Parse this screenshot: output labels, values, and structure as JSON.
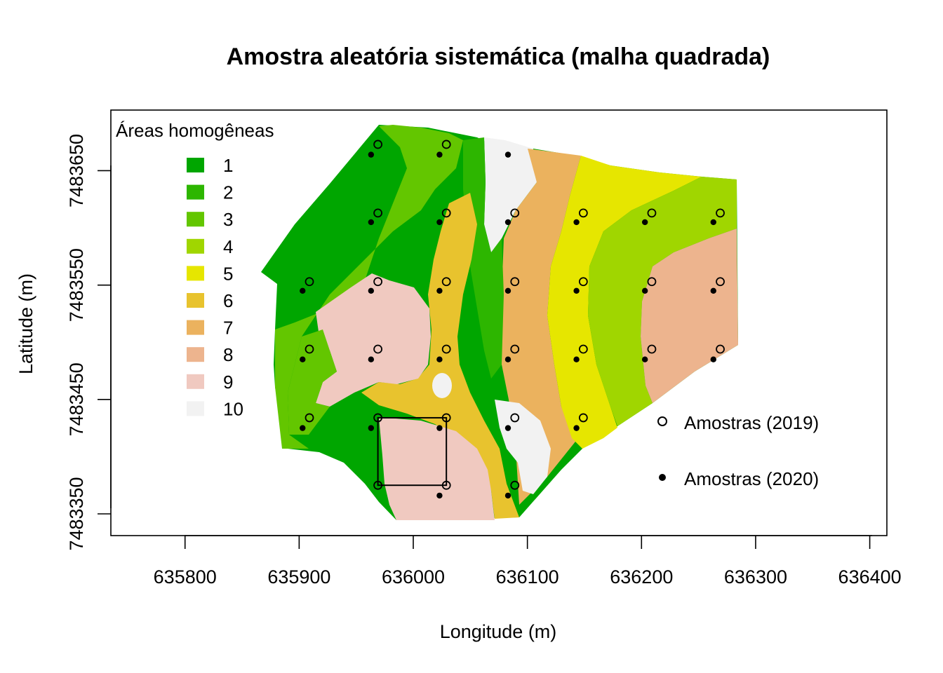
{
  "title": "Amostra aleatória sistemática (malha quadrada)",
  "x_axis": {
    "label": "Longitude (m)",
    "ticks": [
      "635800",
      "635900",
      "636000",
      "636100",
      "636200",
      "636300",
      "636400"
    ]
  },
  "y_axis": {
    "label": "Latitude (m)",
    "ticks": [
      "7483350",
      "7483450",
      "7483550",
      "7483650"
    ]
  },
  "zones_legend": {
    "title": "Áreas homogêneas",
    "items": [
      {
        "label": "1",
        "color": "#00A600"
      },
      {
        "label": "2",
        "color": "#2DB600"
      },
      {
        "label": "3",
        "color": "#63C600"
      },
      {
        "label": "4",
        "color": "#A0D600"
      },
      {
        "label": "5",
        "color": "#E6E600"
      },
      {
        "label": "6",
        "color": "#E8C32E"
      },
      {
        "label": "7",
        "color": "#EBB25E"
      },
      {
        "label": "8",
        "color": "#EDB48E"
      },
      {
        "label": "9",
        "color": "#F0C9C0"
      },
      {
        "label": "10",
        "color": "#F2F2F2"
      }
    ]
  },
  "samples_legend": {
    "open_label": "Amostras (2019)",
    "filled_label": "Amostras (2020)"
  },
  "chart_data": {
    "type": "scatter",
    "title": "Amostra aleatória sistemática (malha quadrada)",
    "xlabel": "Longitude (m)",
    "ylabel": "Latitude (m)",
    "xlim": [
      635735,
      636415
    ],
    "ylim": [
      7483331,
      7483703
    ],
    "series": [
      {
        "name": "Amostras (2019)",
        "marker": "open-circle",
        "points": [
          [
            635969,
            7483673
          ],
          [
            636029,
            7483673
          ],
          [
            635969,
            7483613
          ],
          [
            636029,
            7483613
          ],
          [
            636089,
            7483613
          ],
          [
            636149,
            7483613
          ],
          [
            636209,
            7483613
          ],
          [
            636269,
            7483613
          ],
          [
            635909,
            7483553
          ],
          [
            635969,
            7483553
          ],
          [
            636029,
            7483553
          ],
          [
            636089,
            7483553
          ],
          [
            636149,
            7483553
          ],
          [
            636209,
            7483553
          ],
          [
            636269,
            7483553
          ],
          [
            635909,
            7483494
          ],
          [
            635969,
            7483494
          ],
          [
            636029,
            7483494
          ],
          [
            636089,
            7483494
          ],
          [
            636149,
            7483494
          ],
          [
            636209,
            7483494
          ],
          [
            636269,
            7483494
          ],
          [
            635909,
            7483434
          ],
          [
            635969,
            7483434
          ],
          [
            636029,
            7483434
          ],
          [
            636089,
            7483434
          ],
          [
            636149,
            7483434
          ],
          [
            635969,
            7483375
          ],
          [
            636029,
            7483375
          ],
          [
            636089,
            7483375
          ]
        ]
      },
      {
        "name": "Amostras (2020)",
        "marker": "filled-dot",
        "points": [
          [
            635963,
            7483664
          ],
          [
            636023,
            7483664
          ],
          [
            636083,
            7483664
          ],
          [
            635963,
            7483605
          ],
          [
            636023,
            7483605
          ],
          [
            636083,
            7483605
          ],
          [
            636143,
            7483605
          ],
          [
            636203,
            7483605
          ],
          [
            636263,
            7483605
          ],
          [
            635903,
            7483545
          ],
          [
            635963,
            7483545
          ],
          [
            636023,
            7483545
          ],
          [
            636083,
            7483545
          ],
          [
            636143,
            7483545
          ],
          [
            636203,
            7483545
          ],
          [
            636263,
            7483545
          ],
          [
            635903,
            7483485
          ],
          [
            635963,
            7483485
          ],
          [
            636023,
            7483485
          ],
          [
            636083,
            7483485
          ],
          [
            636143,
            7483485
          ],
          [
            636203,
            7483485
          ],
          [
            636263,
            7483485
          ],
          [
            635903,
            7483425
          ],
          [
            635963,
            7483425
          ],
          [
            636023,
            7483425
          ],
          [
            636083,
            7483425
          ],
          [
            636143,
            7483425
          ],
          [
            636023,
            7483366
          ],
          [
            636083,
            7483366
          ]
        ]
      }
    ],
    "highlight_square": {
      "x": [
        635969,
        636029
      ],
      "y": [
        7483375,
        7483434
      ]
    }
  }
}
